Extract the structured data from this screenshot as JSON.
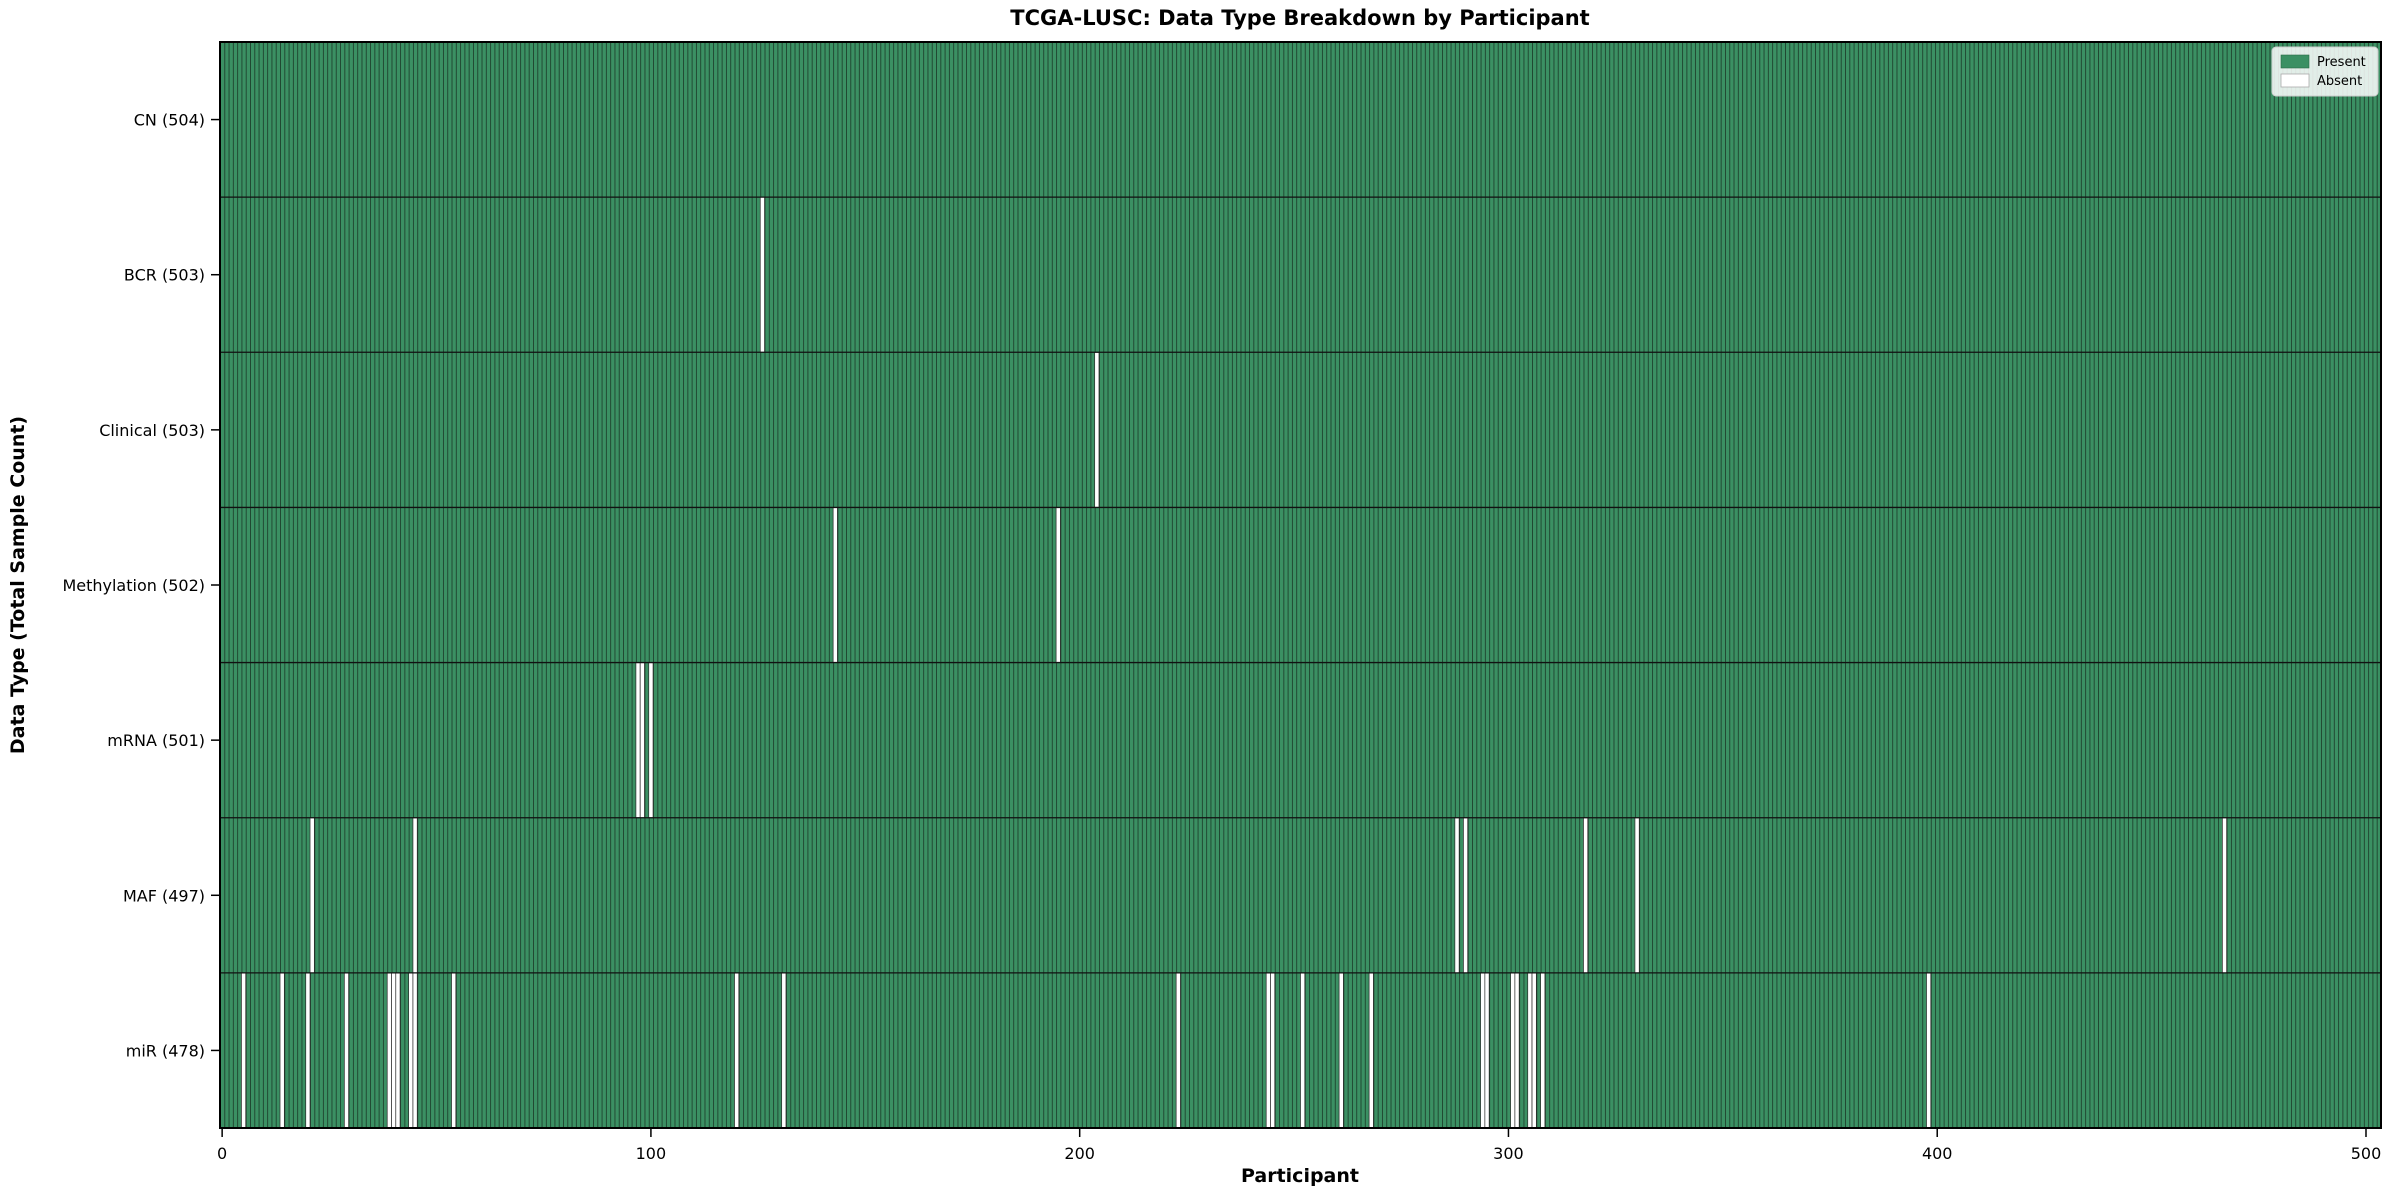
{
  "figure": {
    "title": "TCGA-LUSC: Data Type Breakdown by Participant",
    "xlabel": "Participant",
    "ylabel": "Data Type (Total Sample Count)"
  },
  "legend": {
    "present_label": "Present",
    "absent_label": "Absent"
  },
  "colors": {
    "present": "#3b9063",
    "bar_edge": "#1b3a28",
    "absent": "#ffffff",
    "absent_edge": "#2a2a2a",
    "separator": "#111111",
    "axis": "#000000",
    "legend_background": "rgba(255,255,255,0.85)",
    "legend_border": "#cccccc"
  },
  "chart_data": {
    "type": "heatmap",
    "title": "TCGA-LUSC: Data Type Breakdown by Participant",
    "xlabel": "Participant",
    "ylabel": "Data Type (Total Sample Count)",
    "x_ticks": [
      0,
      100,
      200,
      300,
      400,
      500
    ],
    "x_range": [
      0,
      504
    ],
    "n_participants": 504,
    "grid": false,
    "legend_entries": [
      "Present",
      "Absent"
    ],
    "legend_position": "upper right",
    "rows": [
      {
        "label": "CN (504)",
        "data_type": "CN",
        "present_count": 504,
        "absent_participants": []
      },
      {
        "label": "BCR (503)",
        "data_type": "BCR",
        "present_count": 503,
        "absent_participants": [
          126
        ]
      },
      {
        "label": "Clinical (503)",
        "data_type": "Clinical",
        "present_count": 503,
        "absent_participants": [
          204
        ]
      },
      {
        "label": "Methylation (502)",
        "data_type": "Methylation",
        "present_count": 502,
        "absent_participants": [
          143,
          195
        ]
      },
      {
        "label": "mRNA (501)",
        "data_type": "mRNA",
        "present_count": 501,
        "absent_participants": [
          97,
          98,
          100
        ]
      },
      {
        "label": "MAF (497)",
        "data_type": "MAF",
        "present_count": 497,
        "absent_participants": [
          21,
          45,
          288,
          290,
          318,
          330,
          467
        ]
      },
      {
        "label": "miR (478)",
        "data_type": "miR",
        "present_count": 478,
        "absent_participants": [
          5,
          14,
          20,
          29,
          39,
          40,
          41,
          44,
          45,
          54,
          120,
          131,
          223,
          244,
          245,
          252,
          261,
          268,
          294,
          295,
          301,
          302,
          305,
          306,
          308,
          398
        ]
      }
    ]
  }
}
